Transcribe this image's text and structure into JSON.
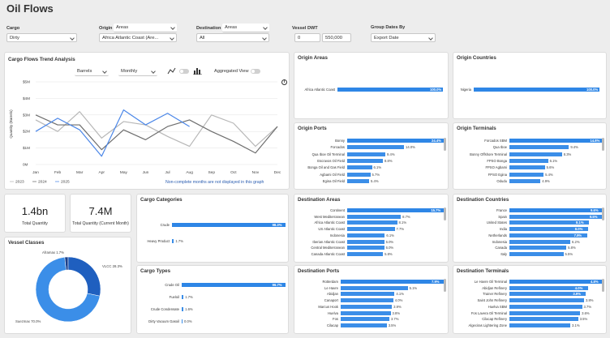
{
  "title": "Oil Flows",
  "filters": {
    "cargo": {
      "label": "Cargo",
      "value": "Dirty"
    },
    "origin": {
      "label": "Origin",
      "mode": "Areas",
      "value": "Africa Atlantic Coast (Are..."
    },
    "destination": {
      "label": "Destination",
      "mode": "Areas",
      "value": "All"
    },
    "vessel_dwt": {
      "label": "Vessel DWT",
      "min": "0",
      "max": "550,000"
    },
    "group_dates": {
      "label": "Group Dates By",
      "value": "Export Date"
    }
  },
  "trend": {
    "title": "Cargo Flows Trend Analysis",
    "unit": "Barrels",
    "period": "Monthly",
    "aggregated_label": "Aggregated View",
    "info_icon": "info-icon",
    "note": "Non-complete months are not displayed in this graph",
    "ylabel": "Quantity (Barrels)"
  },
  "chart_data": {
    "type": "line",
    "categories": [
      "Jan",
      "Feb",
      "Mar",
      "Apr",
      "May",
      "Jun",
      "Jul",
      "Aug",
      "Sep",
      "Oct",
      "Nov",
      "Dec"
    ],
    "yticks": [
      "0M",
      "$1M",
      "$2M",
      "$3M",
      "$4M",
      "$5M"
    ],
    "ylim": [
      0,
      5
    ],
    "series": [
      {
        "name": "2023",
        "color": "#b7b7b7",
        "values": [
          2.7,
          2.0,
          3.2,
          1.6,
          2.6,
          2.4,
          1.7,
          1.1,
          3.0,
          2.5,
          1.1,
          2.3
        ]
      },
      {
        "name": "2024",
        "color": "#6e6e6e",
        "values": [
          3.0,
          2.4,
          2.4,
          0.9,
          2.1,
          1.5,
          2.3,
          2.7,
          2.0,
          1.4,
          0.7,
          2.3
        ]
      },
      {
        "name": "2025",
        "color": "#4a86e8",
        "values": [
          2.0,
          2.8,
          2.1,
          0.5,
          3.3,
          2.4,
          3.1,
          2.3,
          null,
          null,
          null,
          null
        ]
      }
    ],
    "legend": [
      "2023",
      "2024",
      "2025"
    ],
    "legend_position": "bottom-left"
  },
  "kpis": {
    "total_quantity": {
      "value": "1.4bn",
      "label": "Total Quantity"
    },
    "current_month": {
      "value": "7.4M",
      "label": "Total Quantity (Current Month)"
    }
  },
  "vessel_classes": {
    "title": "Vessel Classes",
    "slices": [
      {
        "name": "Suezmax",
        "pct": 70.0,
        "label": "Suezmax 70.0%",
        "color": "#3b8ee8"
      },
      {
        "name": "VLCC",
        "pct": 28.3,
        "label": "VLCC 28.3%",
        "color": "#1f5fbf"
      },
      {
        "name": "Aframax",
        "pct": 1.7,
        "label": "Aframax 1.7%",
        "color": "#1a3f8a"
      }
    ]
  },
  "cargo_categories": {
    "title": "Cargo Categories",
    "rows": [
      {
        "label": "Crude",
        "value": 98.3,
        "text": "98.3%"
      },
      {
        "label": "Heavy Product",
        "value": 1.7,
        "text": "1.7%"
      }
    ]
  },
  "cargo_types": {
    "title": "Cargo Types",
    "rows": [
      {
        "label": "Crude Oil",
        "value": 96.7,
        "text": "96.7%"
      },
      {
        "label": "Fueloil",
        "value": 1.7,
        "text": "1.7%"
      },
      {
        "label": "Crude Condensate",
        "value": 1.6,
        "text": "1.6%"
      },
      {
        "label": "Dirty Vacuum Gasoil",
        "value": 0.0,
        "text": "0.0%"
      }
    ]
  },
  "origin_areas": {
    "title": "Origin Areas",
    "rows": [
      {
        "label": "Africa Atlantic Coast",
        "value": 100.0,
        "text": "100.0%"
      }
    ]
  },
  "origin_countries": {
    "title": "Origin Countries",
    "rows": [
      {
        "label": "Nigeria",
        "value": 100.0,
        "text": "100.0%"
      }
    ]
  },
  "origin_ports": {
    "title": "Origin Ports",
    "rows": [
      {
        "label": "Bonny",
        "value": 24.4,
        "text": "24.4%"
      },
      {
        "label": "Forcados",
        "value": 14.0,
        "text": "14.0%"
      },
      {
        "label": "Qua Iboe Oil Terminal",
        "value": 9.4,
        "text": "9.4%"
      },
      {
        "label": "Escravos Oil Field",
        "value": 8.8,
        "text": "8.8%"
      },
      {
        "label": "Bonga Oil and Gas Field",
        "value": 6.1,
        "text": "6.1%"
      },
      {
        "label": "Agbami Oil Field",
        "value": 5.7,
        "text": "5.7%"
      },
      {
        "label": "Egina Oil Field",
        "value": 5.4,
        "text": "5.4%"
      }
    ]
  },
  "origin_terminals": {
    "title": "Origin Terminals",
    "rows": [
      {
        "label": "Forcados SBM",
        "value": 14.8,
        "text": "14.8%"
      },
      {
        "label": "Qua Iboe",
        "value": 9.4,
        "text": "9.4%"
      },
      {
        "label": "Bonny Offshore Terminal",
        "value": 8.3,
        "text": "8.3%"
      },
      {
        "label": "FPSO Bonga",
        "value": 6.1,
        "text": "6.1%"
      },
      {
        "label": "FPSO Agbami",
        "value": 5.6,
        "text": "5.6%"
      },
      {
        "label": "FPSO Egina",
        "value": 5.4,
        "text": "5.4%"
      },
      {
        "label": "Odudu",
        "value": 4.9,
        "text": "4.9%"
      }
    ]
  },
  "destination_areas": {
    "title": "Destination Areas",
    "rows": [
      {
        "label": "Continent",
        "value": 15.7,
        "text": "15.7%"
      },
      {
        "label": "West Mediterranean",
        "value": 8.7,
        "text": "8.7%"
      },
      {
        "label": "Africa Atlantic Coast",
        "value": 8.1,
        "text": "8.1%"
      },
      {
        "label": "US Atlantic Coast",
        "value": 7.7,
        "text": "7.7%"
      },
      {
        "label": "Indonesia",
        "value": 6.1,
        "text": "6.1%"
      },
      {
        "label": "Iberian Atlantic Coast",
        "value": 6.0,
        "text": "6.0%"
      },
      {
        "label": "Central Mediterranean",
        "value": 6.0,
        "text": "6.0%"
      },
      {
        "label": "Canada Atlantic Coast",
        "value": 5.8,
        "text": "5.8%"
      }
    ]
  },
  "destination_countries": {
    "title": "Destination Countries",
    "rows": [
      {
        "label": "France",
        "value": 9.6,
        "text": "9.6%"
      },
      {
        "label": "Spain",
        "value": 9.5,
        "text": "9.5%"
      },
      {
        "label": "United States",
        "value": 8.1,
        "text": "8.1%"
      },
      {
        "label": "India",
        "value": 8.0,
        "text": "8.0%"
      },
      {
        "label": "Netherlands",
        "value": 7.9,
        "text": "7.9%"
      },
      {
        "label": "Indonesia",
        "value": 6.2,
        "text": "6.2%"
      },
      {
        "label": "Canada",
        "value": 5.8,
        "text": "5.8%"
      },
      {
        "label": "Italy",
        "value": 5.5,
        "text": "5.5%"
      }
    ]
  },
  "destination_ports": {
    "title": "Destination Ports",
    "rows": [
      {
        "label": "Rotterdam",
        "value": 7.9,
        "text": "7.9%"
      },
      {
        "label": "Le Havre",
        "value": 5.1,
        "text": "5.1%"
      },
      {
        "label": "Abidjan",
        "value": 4.1,
        "text": "4.1%"
      },
      {
        "label": "Canaport",
        "value": 4.0,
        "text": "4.0%"
      },
      {
        "label": "Marcus Hook",
        "value": 3.9,
        "text": "3.9%"
      },
      {
        "label": "Huelva",
        "value": 3.8,
        "text": "3.8%"
      },
      {
        "label": "Fos",
        "value": 3.7,
        "text": "3.7%"
      },
      {
        "label": "Cilacap",
        "value": 3.5,
        "text": "3.5%"
      }
    ]
  },
  "destination_terminals": {
    "title": "Destination Terminals",
    "rows": [
      {
        "label": "Le Havre Oil Terminal",
        "value": 4.8,
        "text": "4.8%"
      },
      {
        "label": "Abidjan Refinery",
        "value": 4.0,
        "text": "4.0%"
      },
      {
        "label": "Trainer Refinery",
        "value": 3.9,
        "text": "3.9%"
      },
      {
        "label": "Saint John Refinery",
        "value": 3.8,
        "text": "3.8%"
      },
      {
        "label": "Huelva SBM",
        "value": 3.7,
        "text": "3.7%"
      },
      {
        "label": "Fos Lavera Oil Terminal",
        "value": 3.6,
        "text": "3.6%"
      },
      {
        "label": "Cilacap Refinery",
        "value": 3.5,
        "text": "3.5%"
      },
      {
        "label": "Algeciras Lightering Zone",
        "value": 3.1,
        "text": "3.1%"
      }
    ]
  }
}
